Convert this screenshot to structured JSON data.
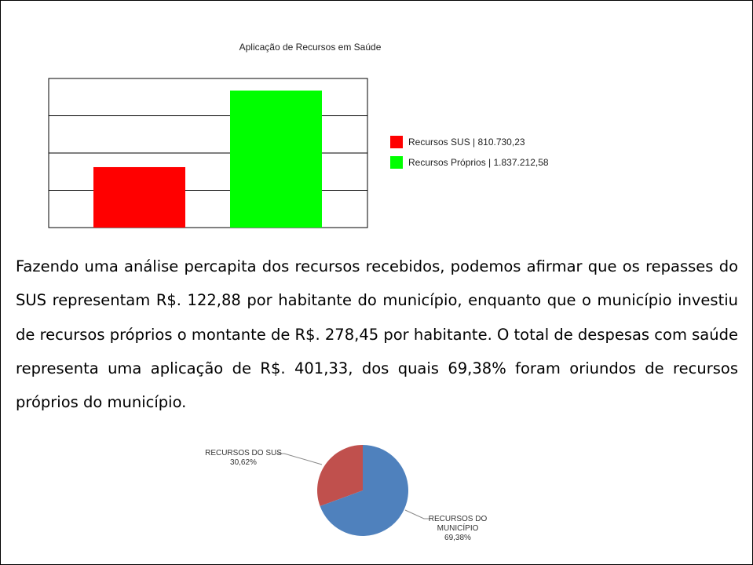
{
  "chart_data": [
    {
      "type": "bar",
      "title": "Aplicação de Recursos em Saúde",
      "series": [
        {
          "name": "Recursos SUS | 810.730,23",
          "color": "#ff0000",
          "values": [
            810730.23
          ]
        },
        {
          "name": "Recursos Próprios | 1.837.212,58",
          "color": "#00ff00",
          "values": [
            1837212.58
          ]
        }
      ],
      "ylim": [
        0,
        2000000
      ],
      "yticks": [
        0,
        500000,
        1000000,
        1500000,
        2000000
      ],
      "grid": true,
      "legend": "right"
    },
    {
      "type": "pie",
      "categories": [
        "RECURSOS DO SUS",
        "RECURSOS DO MUNICÍPIO"
      ],
      "values": [
        30.62,
        69.38
      ],
      "value_labels": [
        "30,62%",
        "69,38%"
      ],
      "colors": [
        "#c0504d",
        "#4f81bd"
      ]
    }
  ],
  "paragraph": "Fazendo uma análise percapita dos recursos recebidos, podemos afirmar que os repasses do SUS representam R$. 122,88 por habitante do município, enquanto que o município investiu de recursos próprios o montante de R$. 278,45 por habitante. O total de despesas com saúde representa uma aplicação de R$. 401,33, dos quais 69,38% foram oriundos de recursos próprios do município."
}
